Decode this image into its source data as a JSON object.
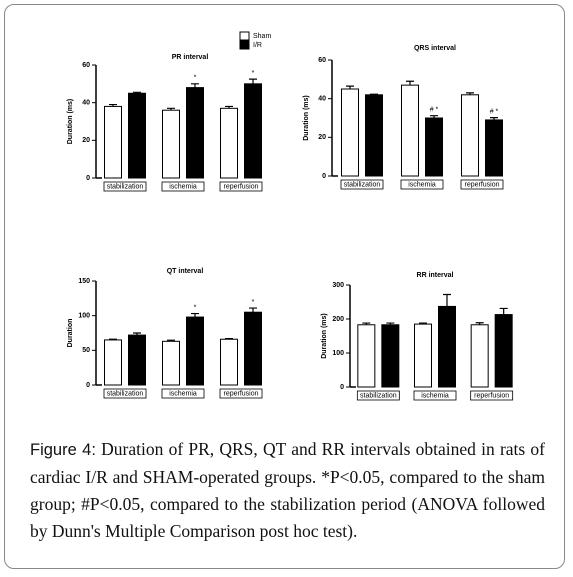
{
  "chart_data": [
    {
      "type": "bar",
      "title": "PR interval",
      "ylabel": "Duration (ms)",
      "categories": [
        "stabilization",
        "ischemia",
        "reperfusion"
      ],
      "series": [
        {
          "name": "Sham",
          "color": "#ffffff",
          "values": [
            38,
            36,
            37
          ],
          "errors": [
            1,
            1,
            1
          ]
        },
        {
          "name": "I/R",
          "color": "#000000",
          "values": [
            45,
            48,
            50
          ],
          "errors": [
            0.5,
            2,
            2.5
          ],
          "annotations": [
            null,
            "*",
            "*"
          ]
        }
      ],
      "ylim": [
        0,
        60
      ],
      "yticks": [
        0,
        20,
        40,
        60
      ]
    },
    {
      "type": "bar",
      "title": "QRS interval",
      "ylabel": "Duration (ms)",
      "categories": [
        "stabilization",
        "ischemia",
        "reperfusion"
      ],
      "series": [
        {
          "color": "#ffffff",
          "values": [
            45,
            47,
            42
          ],
          "errors": [
            1.5,
            2,
            1
          ]
        },
        {
          "color": "#000000",
          "values": [
            42,
            30,
            29
          ],
          "errors": [
            0.3,
            1.2,
            1.2
          ],
          "annotations": [
            null,
            "# *",
            "# *"
          ]
        }
      ],
      "ylim": [
        0,
        60
      ],
      "yticks": [
        0,
        20,
        40,
        60
      ]
    },
    {
      "type": "bar",
      "title": "QT interval",
      "ylabel": "Duration",
      "categories": [
        "stabilization",
        "ischemia",
        "reperfusion"
      ],
      "series": [
        {
          "color": "#ffffff",
          "values": [
            65,
            63,
            66
          ],
          "errors": [
            1,
            1.5,
            1
          ]
        },
        {
          "color": "#000000",
          "values": [
            72,
            98,
            105
          ],
          "errors": [
            3,
            5,
            6
          ],
          "annotations": [
            null,
            "*",
            "*"
          ]
        }
      ],
      "ylim": [
        0,
        150
      ],
      "yticks": [
        0,
        50,
        100,
        150
      ]
    },
    {
      "type": "bar",
      "title": "RR interval",
      "ylabel": "Duration (ms)",
      "categories": [
        "stabilization",
        "ischemia",
        "reperfusion"
      ],
      "series": [
        {
          "color": "#ffffff",
          "values": [
            183,
            185,
            183
          ],
          "errors": [
            5,
            3,
            6
          ]
        },
        {
          "color": "#000000",
          "values": [
            183,
            237,
            213
          ],
          "errors": [
            5,
            35,
            18
          ]
        }
      ],
      "ylim": [
        0,
        300
      ],
      "yticks": [
        0,
        100,
        200,
        300
      ]
    }
  ],
  "caption": {
    "label": "Figure 4:",
    "text": "Duration of PR, QRS, QT and RR intervals obtained in rats of cardiac I/R and SHAM-operated groups. *P<0.05, compared to the sham group; #P<0.05, compared to the stabilization period (ANOVA followed by Dunn's Multiple Comparison post hoc test)."
  }
}
